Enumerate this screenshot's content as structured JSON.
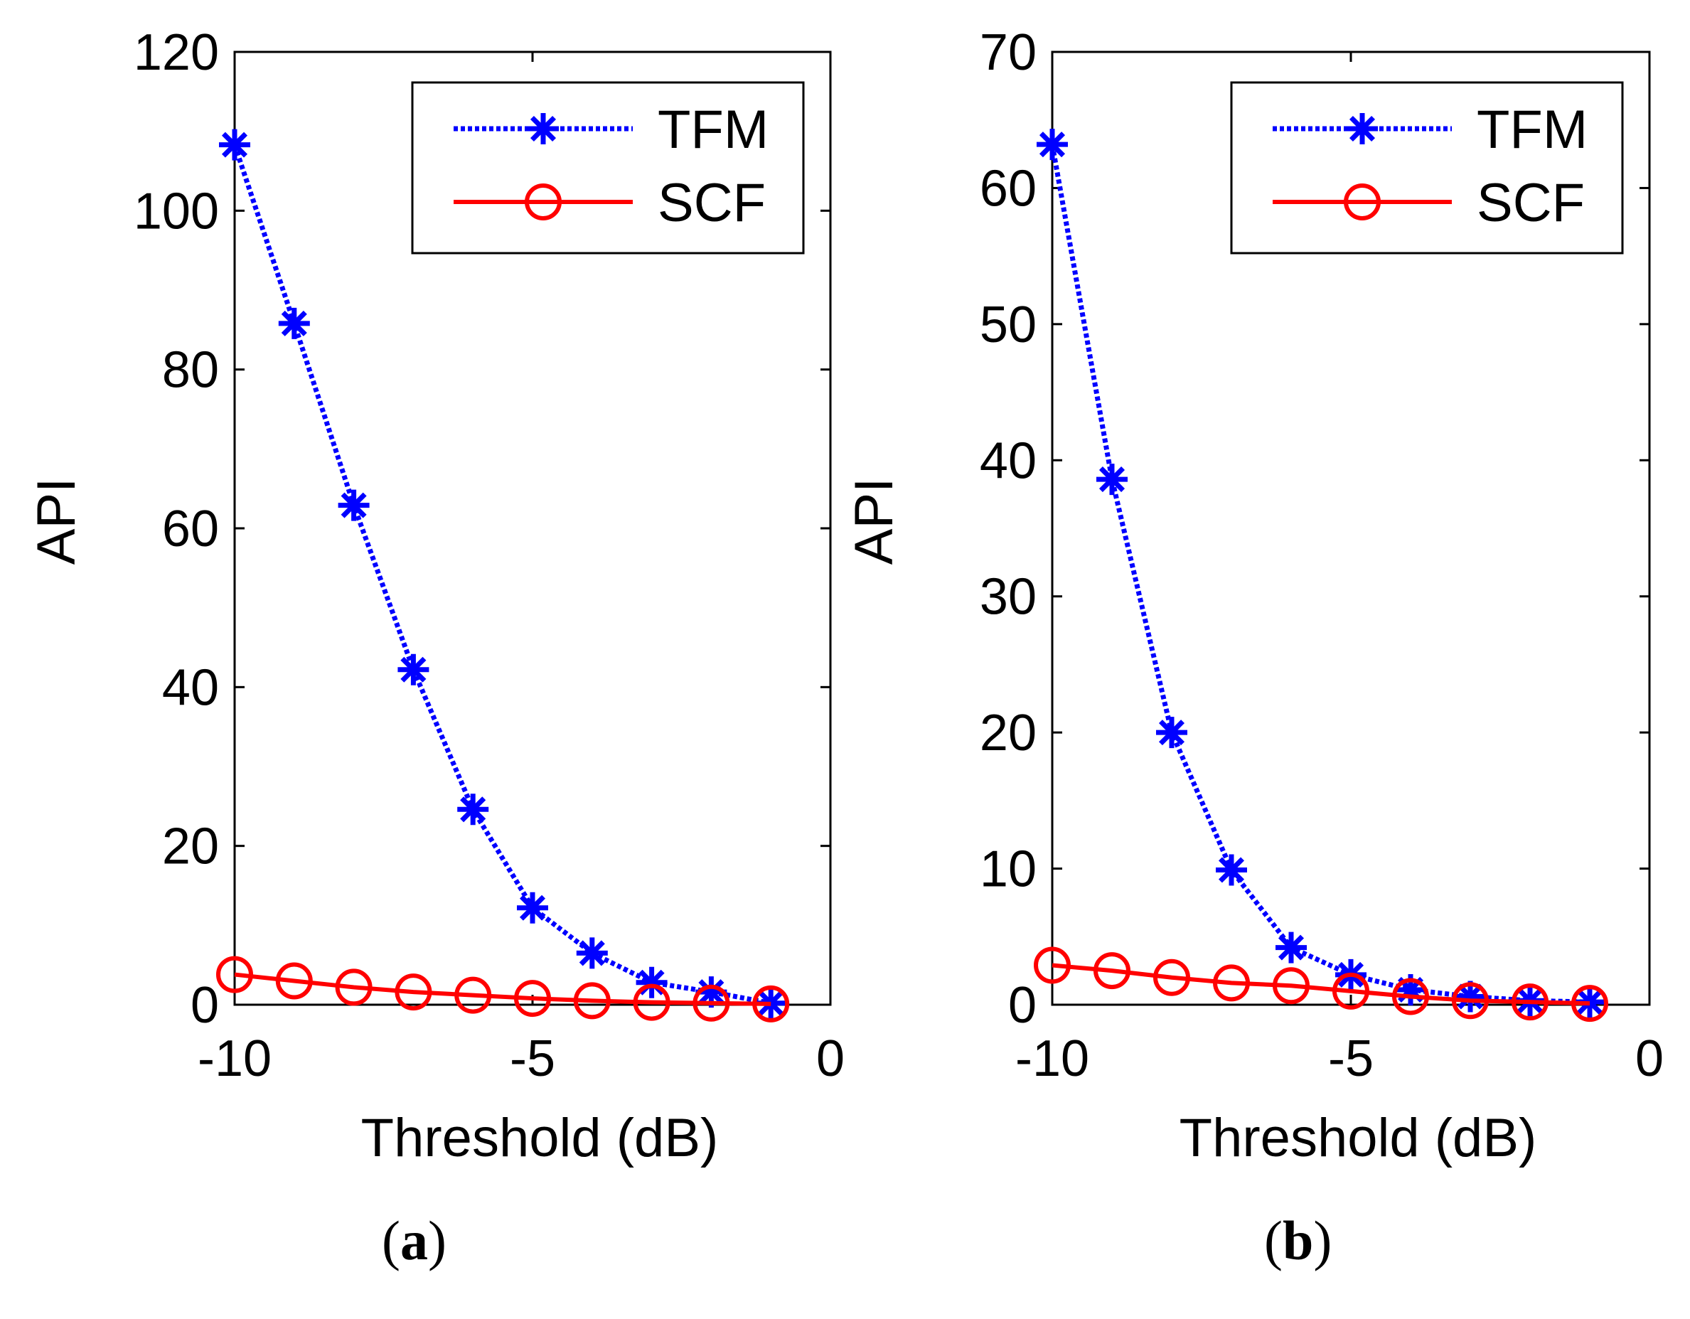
{
  "chart_data": [
    {
      "type": "line",
      "panel": "a",
      "caption": "a",
      "xlabel": "Threshold (dB)",
      "ylabel": "API",
      "xlim": [
        -10,
        0
      ],
      "ylim": [
        0,
        120
      ],
      "xticks": [
        -10,
        -5,
        0
      ],
      "yticks": [
        0,
        20,
        40,
        60,
        80,
        100,
        120
      ],
      "legend_position": "top-right",
      "x": [
        -10,
        -9,
        -8,
        -7,
        -6,
        -5,
        -4,
        -3,
        -2,
        -1
      ],
      "series": [
        {
          "name": "TFM",
          "color": "#0000ff",
          "style": "dotted",
          "marker": "asterisk",
          "values": [
            108.3,
            85.8,
            62.9,
            42.2,
            24.6,
            12.2,
            6.5,
            2.8,
            1.6,
            0.2
          ]
        },
        {
          "name": "SCF",
          "color": "#ff0000",
          "style": "solid",
          "marker": "circle",
          "values": [
            3.8,
            3.0,
            2.2,
            1.6,
            1.2,
            0.8,
            0.5,
            0.3,
            0.2,
            0.1
          ]
        }
      ]
    },
    {
      "type": "line",
      "panel": "b",
      "caption": "b",
      "xlabel": "Threshold (dB)",
      "ylabel": "API",
      "xlim": [
        -10,
        0
      ],
      "ylim": [
        0,
        70
      ],
      "xticks": [
        -10,
        -5,
        0
      ],
      "yticks": [
        0,
        10,
        20,
        30,
        40,
        50,
        60,
        70
      ],
      "legend_position": "top-right",
      "x": [
        -10,
        -9,
        -8,
        -7,
        -6,
        -5,
        -4,
        -3,
        -2,
        -1
      ],
      "series": [
        {
          "name": "TFM",
          "color": "#0000ff",
          "style": "dotted",
          "marker": "asterisk",
          "values": [
            63.2,
            38.6,
            20.0,
            9.9,
            4.2,
            2.2,
            1.1,
            0.6,
            0.3,
            0.2
          ]
        },
        {
          "name": "SCF",
          "color": "#ff0000",
          "style": "solid",
          "marker": "circle",
          "values": [
            2.9,
            2.5,
            2.0,
            1.6,
            1.4,
            1.0,
            0.6,
            0.3,
            0.2,
            0.1
          ]
        }
      ]
    }
  ]
}
